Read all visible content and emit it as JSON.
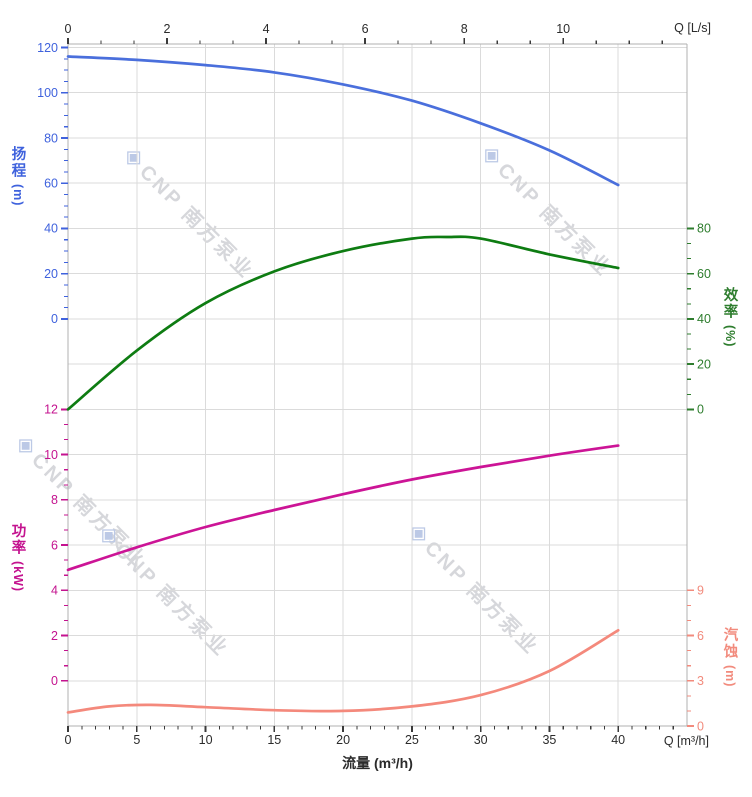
{
  "page": {
    "background": "#ffffff"
  },
  "watermark": {
    "logo_glyph": "◈",
    "text": "CNP 南方泵业",
    "logo_color": "#bcc9e6",
    "text_color": "#d6d7db"
  },
  "chart_data": {
    "type": "line",
    "title": "",
    "x_bottom": {
      "label": "流量 (m³/h)",
      "corner_label": "Q [m³/h]",
      "ticks": [
        0,
        5,
        10,
        15,
        20,
        25,
        30,
        35,
        40
      ],
      "major_step": 5,
      "minors_between": 4,
      "range": [
        0,
        45
      ],
      "color": "#2b2b2b"
    },
    "x_top": {
      "corner_label": "Q [L/s]",
      "ticks": [
        0,
        2,
        4,
        6,
        8,
        10
      ],
      "major_step": 2,
      "minors_between": 2,
      "range": [
        0,
        12.5
      ],
      "color": "#2b2b2b"
    },
    "y_axes": [
      {
        "id": "head",
        "title": "扬程",
        "unit": "(m)",
        "side": "left",
        "color": "#3f62dd",
        "ticks": [
          120,
          100,
          80,
          60,
          40,
          20,
          0
        ],
        "row_start": 0,
        "value_per_row": 20,
        "minors_between": 3
      },
      {
        "id": "eff",
        "title": "效率",
        "unit": "(%)",
        "side": "right",
        "color": "#2e7d2e",
        "ticks": [
          80,
          60,
          40,
          20,
          0
        ],
        "row_start": 4,
        "value_per_row": 20,
        "minors_between": 2
      },
      {
        "id": "power",
        "title": "功率",
        "unit": "(kW)",
        "side": "left",
        "color": "#c4138f",
        "ticks": [
          12,
          10,
          8,
          6,
          4,
          2,
          0
        ],
        "row_start": 8,
        "value_per_row": 2,
        "minors_between": 2
      },
      {
        "id": "npsh",
        "title": "汽蚀",
        "unit": "(m)",
        "side": "right",
        "color": "#f28b7d",
        "ticks": [
          9,
          6,
          3,
          0
        ],
        "row_start": 12,
        "value_per_row": 3,
        "minors_between": 2
      }
    ],
    "series": [
      {
        "name": "head_curve",
        "axis": "head",
        "color": "#4a6fdc",
        "width": 2.7,
        "x": [
          0,
          5,
          10,
          15,
          20,
          25,
          30,
          35,
          40
        ],
        "y": [
          116,
          114.5,
          112.2,
          109,
          103.7,
          96.5,
          86.5,
          74.5,
          59.2
        ]
      },
      {
        "name": "efficiency_curve",
        "axis": "eff",
        "color": "#0e7c12",
        "width": 2.7,
        "x": [
          0,
          5,
          10,
          15,
          20,
          25,
          27.5,
          30,
          35,
          40
        ],
        "y": [
          0,
          26,
          47,
          61,
          70,
          75.5,
          76.2,
          75.5,
          68.5,
          62.5
        ]
      },
      {
        "name": "power_curve",
        "axis": "power",
        "color": "#cc1496",
        "width": 2.7,
        "x": [
          0,
          5,
          10,
          15,
          20,
          25,
          30,
          35,
          40
        ],
        "y": [
          4.9,
          5.9,
          6.8,
          7.55,
          8.25,
          8.9,
          9.45,
          9.95,
          10.4
        ]
      },
      {
        "name": "npsh_curve",
        "axis": "npsh",
        "color": "#f4897c",
        "width": 2.7,
        "x": [
          0,
          3,
          6,
          10,
          15,
          20,
          25,
          30,
          35,
          40
        ],
        "y": [
          0.9,
          1.3,
          1.4,
          1.25,
          1.05,
          1.0,
          1.3,
          2.05,
          3.65,
          6.35
        ]
      }
    ],
    "grid": {
      "color": "#dbdbdb",
      "spine_color": "#b0b0b0",
      "tick_dark": "#3a3a3a"
    }
  }
}
